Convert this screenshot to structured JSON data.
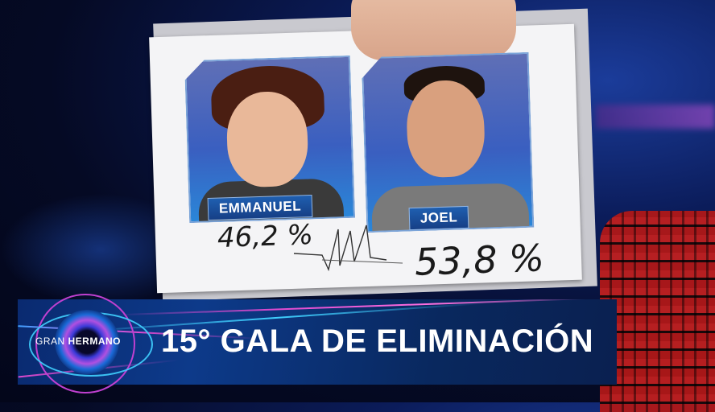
{
  "card": {
    "candidates": [
      {
        "name": "EMMANUEL",
        "percentage": "46,2 %"
      },
      {
        "name": "JOEL",
        "percentage": "53,8 %"
      }
    ]
  },
  "banner": {
    "logo": {
      "word1": "GRAN",
      "word2": "HERMANO"
    },
    "title": "15° GALA DE ELIMINACIÓN"
  },
  "colors": {
    "banner_blue": "#0d3a8a",
    "name_label_blue": "#1f5fb0",
    "accent_magenta": "#c040d0",
    "accent_cyan": "#40d0ff"
  }
}
